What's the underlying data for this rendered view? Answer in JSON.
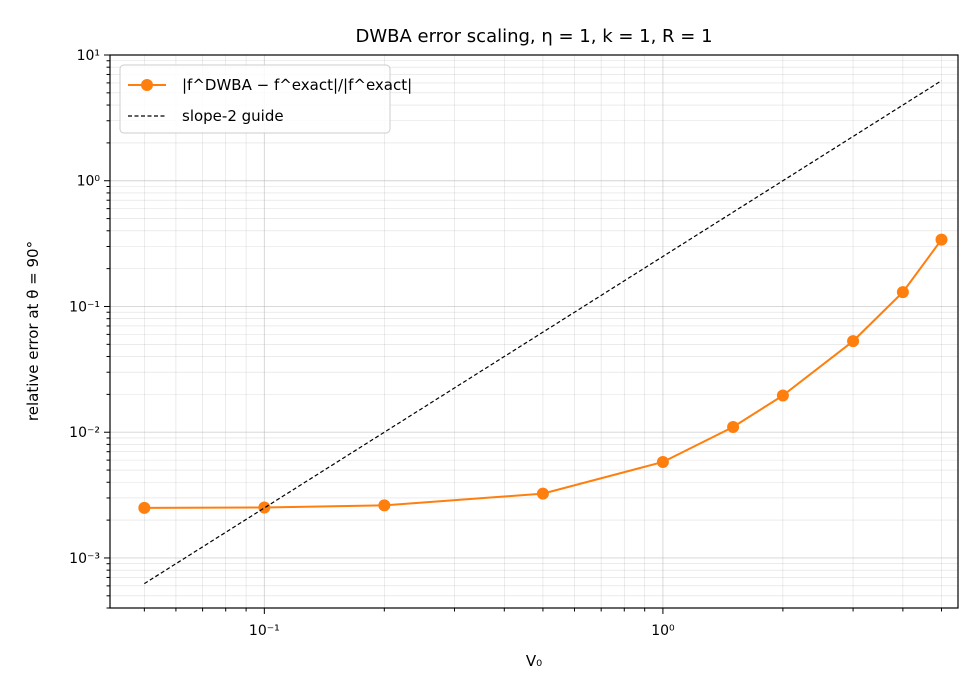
{
  "chart_data": {
    "type": "line",
    "title": "DWBA error scaling, η = 1, k = 1, R = 1",
    "xlabel": "V₀",
    "ylabel": "relative error at θ = 90°",
    "xscale": "log",
    "yscale": "log",
    "xlim": [
      0.041,
      5.5
    ],
    "ylim": [
      0.0004,
      10
    ],
    "grid": true,
    "legend_position": "top-left",
    "x_tick_labels": [
      "10⁻¹",
      "10⁰"
    ],
    "y_tick_labels": [
      "10⁻³",
      "10⁻²",
      "10⁻¹",
      "10⁰",
      "10¹"
    ],
    "series": [
      {
        "name": "|f^DWBA − f^exact|/|f^exact|",
        "color": "#ff7f0e",
        "style": "solid",
        "marker": "circle",
        "x": [
          0.05,
          0.1,
          0.2,
          0.5,
          1.0,
          1.5,
          2.0,
          3.0,
          4.0,
          5.0
        ],
        "y": [
          0.0025,
          0.00252,
          0.00262,
          0.00325,
          0.0058,
          0.011,
          0.0196,
          0.053,
          0.13,
          0.34
        ]
      },
      {
        "name": "slope-2 guide",
        "color": "#000000",
        "style": "dashed",
        "marker": "none",
        "x": [
          0.05,
          5.0
        ],
        "y": [
          0.000625,
          6.25
        ]
      }
    ]
  }
}
